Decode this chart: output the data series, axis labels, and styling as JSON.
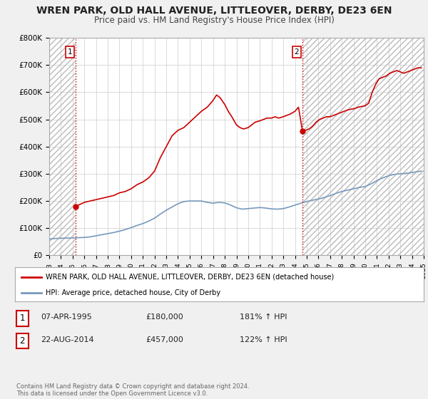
{
  "title": "WREN PARK, OLD HALL AVENUE, LITTLEOVER, DERBY, DE23 6EN",
  "subtitle": "Price paid vs. HM Land Registry's House Price Index (HPI)",
  "title_fontsize": 10,
  "subtitle_fontsize": 8.5,
  "bg_color": "#f0f0f0",
  "plot_bg_color": "#ffffff",
  "red_color": "#cc0000",
  "blue_color": "#7799bb",
  "grid_color": "#cccccc",
  "vline_color": "#cc0000",
  "marker_color": "#cc0000",
  "hatch_color": "#dddddd",
  "legend_label_red": "WREN PARK, OLD HALL AVENUE, LITTLEOVER, DERBY, DE23 6EN (detached house)",
  "legend_label_blue": "HPI: Average price, detached house, City of Derby",
  "sale1_date": "07-APR-1995",
  "sale1_price": "£180,000",
  "sale1_hpi": "181% ↑ HPI",
  "sale1_year": 1995.27,
  "sale1_value": 180000,
  "sale2_date": "22-AUG-2014",
  "sale2_price": "£457,000",
  "sale2_hpi": "122% ↑ HPI",
  "sale2_year": 2014.64,
  "sale2_value": 457000,
  "xmin": 1993,
  "xmax": 2025,
  "ymin": 0,
  "ymax": 800000,
  "yticks": [
    0,
    100000,
    200000,
    300000,
    400000,
    500000,
    600000,
    700000,
    800000
  ],
  "ytick_labels": [
    "£0",
    "£100K",
    "£200K",
    "£300K",
    "£400K",
    "£500K",
    "£600K",
    "£700K",
    "£800K"
  ],
  "footer": "Contains HM Land Registry data © Crown copyright and database right 2024.\nThis data is licensed under the Open Government Licence v3.0.",
  "red_x": [
    1995.27,
    1995.5,
    1996.0,
    1996.5,
    1997.0,
    1997.5,
    1998.0,
    1998.5,
    1999.0,
    1999.5,
    2000.0,
    2000.5,
    2001.0,
    2001.5,
    2002.0,
    2002.5,
    2003.0,
    2003.5,
    2004.0,
    2004.5,
    2005.0,
    2005.5,
    2006.0,
    2006.5,
    2007.0,
    2007.3,
    2007.6,
    2008.0,
    2008.3,
    2008.6,
    2009.0,
    2009.3,
    2009.6,
    2010.0,
    2010.3,
    2010.6,
    2011.0,
    2011.3,
    2011.6,
    2012.0,
    2012.3,
    2012.6,
    2013.0,
    2013.3,
    2013.6,
    2014.0,
    2014.3,
    2014.64,
    2014.9,
    2015.2,
    2015.5,
    2015.8,
    2016.1,
    2016.4,
    2016.7,
    2017.0,
    2017.3,
    2017.6,
    2017.9,
    2018.2,
    2018.5,
    2018.8,
    2019.1,
    2019.4,
    2019.7,
    2020.0,
    2020.3,
    2020.6,
    2020.9,
    2021.2,
    2021.5,
    2021.8,
    2022.1,
    2022.4,
    2022.7,
    2023.0,
    2023.3,
    2023.6,
    2023.9,
    2024.2,
    2024.5,
    2024.8
  ],
  "red_y": [
    180000,
    185000,
    195000,
    200000,
    205000,
    210000,
    215000,
    220000,
    230000,
    235000,
    245000,
    260000,
    270000,
    285000,
    310000,
    360000,
    400000,
    440000,
    460000,
    470000,
    490000,
    510000,
    530000,
    545000,
    570000,
    590000,
    580000,
    555000,
    530000,
    510000,
    480000,
    470000,
    465000,
    470000,
    480000,
    490000,
    495000,
    500000,
    505000,
    505000,
    510000,
    505000,
    510000,
    515000,
    520000,
    530000,
    545000,
    457000,
    460000,
    465000,
    475000,
    490000,
    500000,
    505000,
    510000,
    510000,
    515000,
    520000,
    525000,
    530000,
    535000,
    538000,
    540000,
    545000,
    548000,
    550000,
    560000,
    600000,
    630000,
    650000,
    655000,
    660000,
    670000,
    675000,
    680000,
    675000,
    670000,
    675000,
    680000,
    685000,
    690000,
    690000
  ],
  "blue_x": [
    1993.0,
    1993.5,
    1994.0,
    1994.5,
    1995.0,
    1995.5,
    1996.0,
    1996.5,
    1997.0,
    1997.5,
    1998.0,
    1998.5,
    1999.0,
    1999.5,
    2000.0,
    2000.5,
    2001.0,
    2001.5,
    2002.0,
    2002.5,
    2003.0,
    2003.5,
    2004.0,
    2004.5,
    2005.0,
    2005.5,
    2006.0,
    2006.5,
    2007.0,
    2007.5,
    2008.0,
    2008.5,
    2009.0,
    2009.5,
    2010.0,
    2010.5,
    2011.0,
    2011.5,
    2012.0,
    2012.5,
    2013.0,
    2013.5,
    2014.0,
    2014.5,
    2015.0,
    2015.5,
    2016.0,
    2016.5,
    2017.0,
    2017.5,
    2018.0,
    2018.5,
    2019.0,
    2019.5,
    2020.0,
    2020.5,
    2021.0,
    2021.5,
    2022.0,
    2022.5,
    2023.0,
    2023.5,
    2024.0,
    2024.5,
    2024.8
  ],
  "blue_y": [
    60000,
    62000,
    63000,
    63500,
    64000,
    65000,
    66000,
    68000,
    72000,
    76000,
    80000,
    84000,
    89000,
    95000,
    102000,
    110000,
    117000,
    126000,
    137000,
    152000,
    166000,
    178000,
    190000,
    198000,
    200000,
    200000,
    200000,
    195000,
    192000,
    195000,
    193000,
    185000,
    175000,
    170000,
    172000,
    174000,
    176000,
    174000,
    171000,
    170000,
    172000,
    178000,
    185000,
    192000,
    198000,
    203000,
    207000,
    213000,
    220000,
    228000,
    235000,
    240000,
    245000,
    250000,
    253000,
    263000,
    275000,
    285000,
    293000,
    298000,
    300000,
    302000,
    305000,
    308000,
    310000
  ]
}
